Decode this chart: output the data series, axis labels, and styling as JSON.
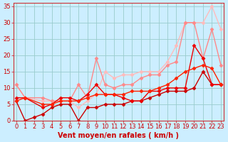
{
  "title": "Vent moyen/en rafales ( km/h )",
  "background_color": "#cceeff",
  "grid_color": "#99cccc",
  "xlim": [
    -0.3,
    23.3
  ],
  "ylim": [
    0,
    36
  ],
  "xticks": [
    0,
    1,
    2,
    3,
    4,
    5,
    6,
    7,
    8,
    9,
    10,
    11,
    12,
    13,
    14,
    15,
    16,
    17,
    18,
    19,
    20,
    21,
    22,
    23
  ],
  "yticks": [
    0,
    5,
    10,
    15,
    20,
    25,
    30,
    35
  ],
  "series": [
    {
      "x": [
        0,
        1,
        3,
        4,
        5,
        6,
        7,
        8,
        9,
        10,
        11,
        12,
        13,
        14,
        15,
        16,
        17,
        18,
        19,
        20,
        21,
        22,
        23
      ],
      "y": [
        11,
        7,
        6,
        6,
        6,
        6,
        4,
        6,
        8,
        15,
        13,
        14,
        14,
        15,
        15,
        15,
        18,
        23,
        30,
        30,
        30,
        35,
        28
      ],
      "color": "#ffbbbb",
      "linewidth": 1.0,
      "marker": "D",
      "markersize": 2.5
    },
    {
      "x": [
        0,
        1,
        3,
        4,
        5,
        6,
        7,
        8,
        9,
        10,
        11,
        12,
        13,
        14,
        15,
        16,
        17,
        18,
        19,
        20,
        21,
        22,
        23
      ],
      "y": [
        11,
        7,
        7,
        6,
        6,
        6,
        11,
        7,
        19,
        11,
        10,
        11,
        11,
        13,
        14,
        14,
        17,
        18,
        30,
        30,
        19,
        28,
        17
      ],
      "color": "#ff8888",
      "linewidth": 1.0,
      "marker": "D",
      "markersize": 2.5
    },
    {
      "x": [
        0,
        1,
        2,
        3,
        4,
        5,
        6,
        7,
        8,
        9,
        10,
        11,
        12,
        13,
        14,
        15,
        16,
        17,
        18,
        19,
        20,
        21,
        22,
        23
      ],
      "y": [
        6,
        0,
        1,
        2,
        4,
        5,
        5,
        0,
        4,
        4,
        5,
        5,
        5,
        6,
        6,
        7,
        8,
        9,
        9,
        9,
        10,
        15,
        11,
        11
      ],
      "color": "#cc0000",
      "linewidth": 1.0,
      "marker": "D",
      "markersize": 2.5
    },
    {
      "x": [
        0,
        1,
        3,
        4,
        5,
        6,
        7,
        8,
        9,
        10,
        11,
        12,
        13,
        14,
        15,
        16,
        17,
        18,
        19,
        20,
        21,
        22,
        23
      ],
      "y": [
        7,
        7,
        4,
        5,
        7,
        7,
        6,
        8,
        11,
        8,
        8,
        7,
        6,
        6,
        9,
        9,
        10,
        10,
        10,
        23,
        19,
        11,
        11
      ],
      "color": "#ee0000",
      "linewidth": 1.0,
      "marker": "D",
      "markersize": 2.5
    },
    {
      "x": [
        0,
        1,
        3,
        4,
        5,
        6,
        7,
        8,
        9,
        10,
        11,
        12,
        13,
        14,
        15,
        16,
        17,
        18,
        19,
        20,
        21,
        22,
        23
      ],
      "y": [
        6,
        7,
        5,
        5,
        6,
        6,
        6,
        7,
        8,
        8,
        8,
        8,
        9,
        9,
        9,
        10,
        11,
        13,
        15,
        16,
        17,
        16,
        11
      ],
      "color": "#ff2200",
      "linewidth": 1.0,
      "marker": "D",
      "markersize": 2.5
    }
  ],
  "xlabel_fontsize": 7,
  "tick_fontsize": 6,
  "tick_color": "#cc0000",
  "axis_label_color": "#cc0000",
  "spine_color": "#cc3333"
}
